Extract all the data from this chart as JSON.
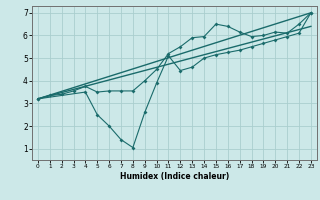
{
  "xlabel": "Humidex (Indice chaleur)",
  "bg_color": "#cce8e8",
  "grid_color": "#aacece",
  "line_color": "#1a6b6b",
  "xlim": [
    -0.5,
    23.5
  ],
  "ylim": [
    0.5,
    7.3
  ],
  "xticks": [
    0,
    1,
    2,
    3,
    4,
    5,
    6,
    7,
    8,
    9,
    10,
    11,
    12,
    13,
    14,
    15,
    16,
    17,
    18,
    19,
    20,
    21,
    22,
    23
  ],
  "yticks": [
    1,
    2,
    3,
    4,
    5,
    6,
    7
  ],
  "series1_x": [
    0,
    1,
    2,
    3,
    4,
    5,
    6,
    7,
    8,
    9,
    10,
    11,
    12,
    13,
    14,
    15,
    16,
    17,
    18,
    19,
    20,
    21,
    22,
    23
  ],
  "series1_y": [
    3.2,
    3.35,
    3.4,
    3.55,
    3.75,
    3.5,
    3.55,
    3.55,
    3.55,
    4.0,
    4.5,
    5.2,
    5.5,
    5.9,
    5.95,
    6.5,
    6.4,
    6.15,
    5.95,
    6.0,
    6.15,
    6.1,
    6.5,
    7.0
  ],
  "series2_x": [
    0,
    4,
    5,
    6,
    7,
    8,
    9,
    10,
    11,
    12,
    13,
    14,
    15,
    16,
    17,
    18,
    19,
    20,
    21,
    22,
    23
  ],
  "series2_y": [
    3.2,
    3.5,
    2.5,
    2.0,
    1.4,
    1.05,
    2.6,
    3.9,
    5.1,
    4.45,
    4.6,
    5.0,
    5.15,
    5.25,
    5.35,
    5.5,
    5.65,
    5.8,
    5.95,
    6.1,
    7.0
  ],
  "trend1_x": [
    0,
    23
  ],
  "trend1_y": [
    3.2,
    6.4
  ],
  "trend2_x": [
    0,
    23
  ],
  "trend2_y": [
    3.2,
    7.0
  ],
  "xlabel_fontsize": 5.5,
  "tick_fontsize_x": 4.2,
  "tick_fontsize_y": 5.5
}
